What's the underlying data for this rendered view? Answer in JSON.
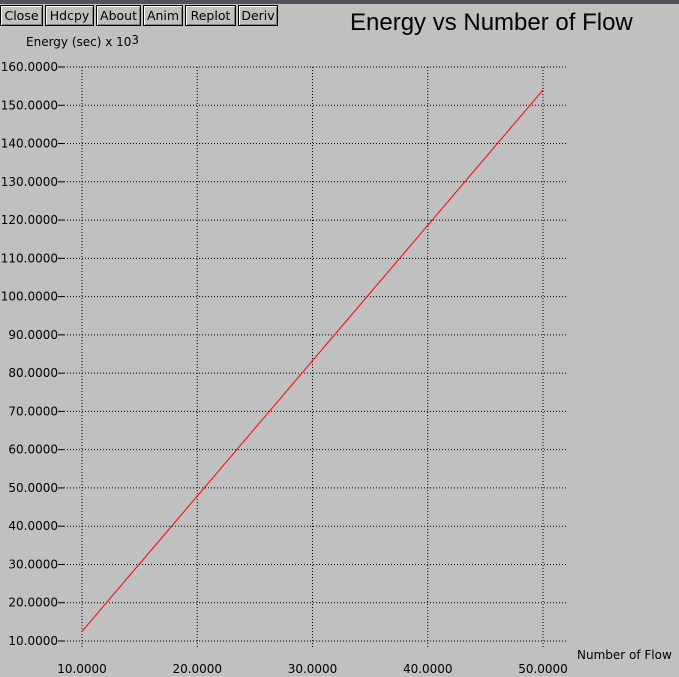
{
  "toolbar": {
    "buttons": [
      "Close",
      "Hdcpy",
      "About",
      "Anim",
      "Replot",
      "Deriv"
    ]
  },
  "chart_data": {
    "type": "line",
    "title": "Energy vs Number of Flow",
    "ylabel_text": "Energy (sec) x 10",
    "ylabel_exponent": "3",
    "xlabel": "Number of Flow",
    "x_ticks": [
      "10.0000",
      "20.0000",
      "30.0000",
      "40.0000",
      "50.0000"
    ],
    "y_ticks": [
      "160.0000",
      "150.0000",
      "140.0000",
      "130.0000",
      "120.0000",
      "110.0000",
      "100.0000",
      "90.0000",
      "80.0000",
      "70.0000",
      "60.0000",
      "50.0000",
      "40.0000",
      "30.0000",
      "20.0000",
      "10.0000"
    ],
    "xlim": [
      10,
      50
    ],
    "ylim": [
      10,
      160
    ],
    "grid": true,
    "series": [
      {
        "color": "#ff0000",
        "x": [
          10,
          50
        ],
        "y": [
          12.5,
          154
        ]
      }
    ]
  }
}
